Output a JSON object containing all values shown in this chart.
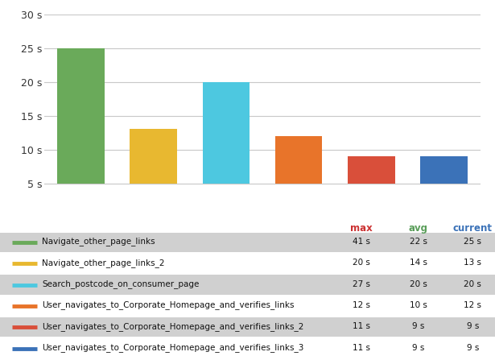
{
  "categories": [
    "Navigate_other_page_links",
    "Navigate_other_page_links_2",
    "Search_postcode_on_consumer_page",
    "User_navigates_to_Corporate_Homepage_and_verifies_links",
    "User_navigates_to_Corporate_Homepage_and_verifies_links_2",
    "User_navigates_to_Corporate_Homepage_and_verifies_links_3"
  ],
  "current_values": [
    25,
    13,
    20,
    12,
    9,
    9
  ],
  "avg_values": [
    22,
    14,
    20,
    10,
    9,
    9
  ],
  "max_values": [
    41,
    20,
    27,
    12,
    11,
    11
  ],
  "bar_colors": [
    "#6aaa5a",
    "#e8b830",
    "#4dc8e0",
    "#e8742a",
    "#d94f3a",
    "#3b72b8"
  ],
  "legend_colors": [
    "#6aaa5a",
    "#e8b830",
    "#4dc8e0",
    "#e8742a",
    "#d94f3a",
    "#3b72b8"
  ],
  "ylim": [
    0,
    30
  ],
  "yticks": [
    5,
    10,
    15,
    20,
    25,
    30
  ],
  "background_color": "#ffffff",
  "legend_bg_color": "#e0e0e0",
  "legend_row_highlight": "#d0d0d0",
  "grid_color": "#c8c8c8",
  "header_max_color": "#cc3333",
  "header_avg_color": "#5a9e5a",
  "header_current_color": "#3b72b8"
}
